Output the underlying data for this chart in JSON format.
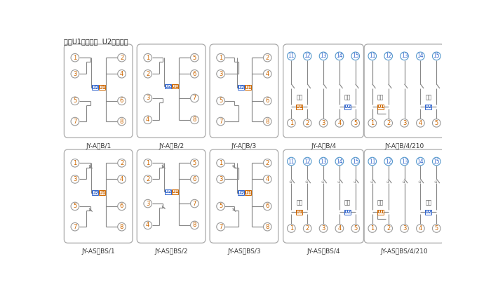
{
  "note": "注：U1辅助电源  U2整定电压",
  "labels_row1": [
    "JY-A、B/1",
    "JY-A、B/2",
    "JY-A、B/3",
    "JY-A、B/4",
    "JY-A、B/4/210"
  ],
  "labels_row2": [
    "JY-AS、BS/1",
    "JY-AS、BS/2",
    "JY-AS、BS/3",
    "JY-AS、BS/4",
    "JY-AS、BS/4/210"
  ],
  "lc": "#888888",
  "oc": "#cc6600",
  "bc": "#3366cc",
  "u1c": "#cc6600",
  "u2c": "#3366cc",
  "panel_ec": "#aaaaaa",
  "bg": "#ffffff",
  "dianYuan": "电源",
  "qiDong": "启动"
}
